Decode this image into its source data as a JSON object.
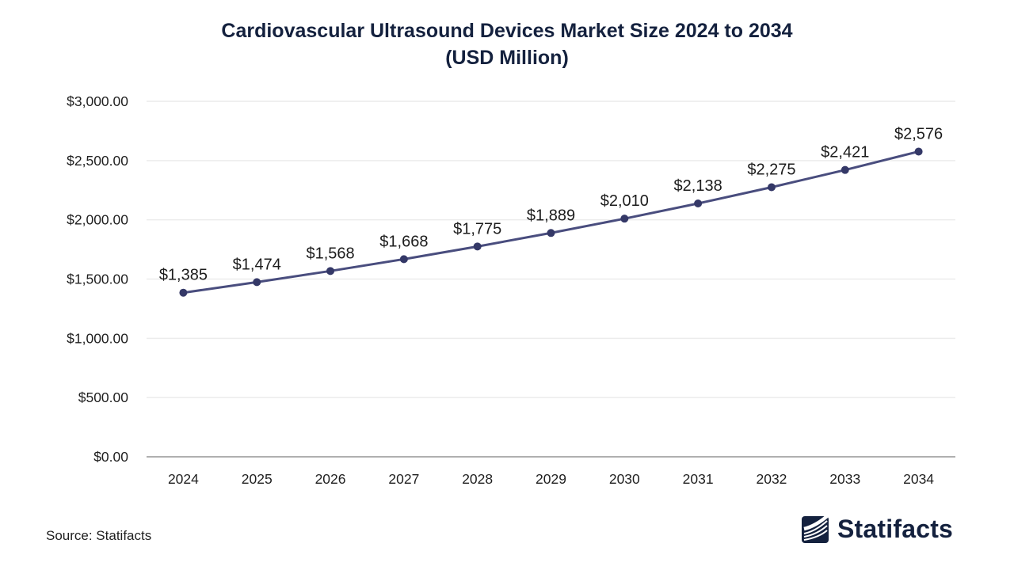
{
  "title": {
    "line1": "Cardiovascular Ultrasound Devices Market Size 2024 to 2034",
    "line2": "(USD Million)"
  },
  "source": {
    "label": "Source: Statifacts"
  },
  "brand": {
    "name": "Statifacts",
    "logo_icon": "statifacts-waves-logo",
    "color": "#14213e"
  },
  "chart_data": {
    "type": "line",
    "title": "Cardiovascular Ultrasound Devices Market Size 2024 to 2034 (USD Million)",
    "xlabel": "",
    "ylabel": "",
    "categories": [
      "2024",
      "2025",
      "2026",
      "2027",
      "2028",
      "2029",
      "2030",
      "2031",
      "2032",
      "2033",
      "2034"
    ],
    "values": [
      1385,
      1474,
      1568,
      1668,
      1775,
      1889,
      2010,
      2138,
      2275,
      2421,
      2576
    ],
    "point_labels": [
      "$1,385",
      "$1,474",
      "$1,568",
      "$1,668",
      "$1,775",
      "$1,889",
      "$2,010",
      "$2,138",
      "$2,275",
      "$2,421",
      "$2,576"
    ],
    "ylim": [
      0,
      3000
    ],
    "y_ticks": [
      0,
      500,
      1000,
      1500,
      2000,
      2500,
      3000
    ],
    "y_tick_labels": [
      "$0.00",
      "$500.00",
      "$1,000.00",
      "$1,500.00",
      "$2,000.00",
      "$2,500.00",
      "$3,000.00"
    ],
    "grid": true,
    "legend": false,
    "line_color": "#494d7e",
    "marker_color": "#343867",
    "data_label_color": "#1c1c1c",
    "tick_label_color": "#1f1f1f",
    "grid_color": "#ececec",
    "axis_line_color": "#b0b0b0"
  }
}
